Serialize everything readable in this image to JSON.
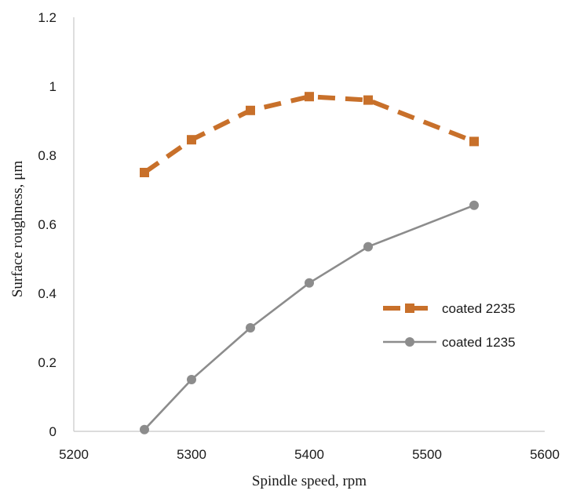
{
  "chart_data": {
    "type": "line",
    "xlabel": "Spindle speed, rpm",
    "ylabel": "Surface roughness, μm",
    "xlim": [
      5200,
      5600
    ],
    "ylim": [
      0,
      1.2
    ],
    "x_ticks": [
      5200,
      5300,
      5400,
      5500,
      5600
    ],
    "x_tick_labels": [
      "5200",
      "5300",
      "5400",
      "5500",
      "5600"
    ],
    "y_ticks": [
      0,
      0.2,
      0.4,
      0.6,
      0.8,
      1,
      1.2
    ],
    "y_tick_labels": [
      "0",
      "0.2",
      "0.4",
      "0.6",
      "0.8",
      "1",
      "1.2"
    ],
    "grid": false,
    "legend_position": "right",
    "series": [
      {
        "name": "coated 2235",
        "color": "#c8702a",
        "line_style": "dashed",
        "marker": "square",
        "x": [
          5260,
          5300,
          5350,
          5400,
          5450,
          5540
        ],
        "y": [
          0.75,
          0.845,
          0.93,
          0.97,
          0.96,
          0.84
        ]
      },
      {
        "name": "coated 1235",
        "color": "#8c8c8c",
        "line_style": "solid",
        "marker": "circle",
        "x": [
          5260,
          5300,
          5350,
          5400,
          5450,
          5540
        ],
        "y": [
          0.005,
          0.15,
          0.3,
          0.43,
          0.535,
          0.655
        ]
      }
    ]
  }
}
